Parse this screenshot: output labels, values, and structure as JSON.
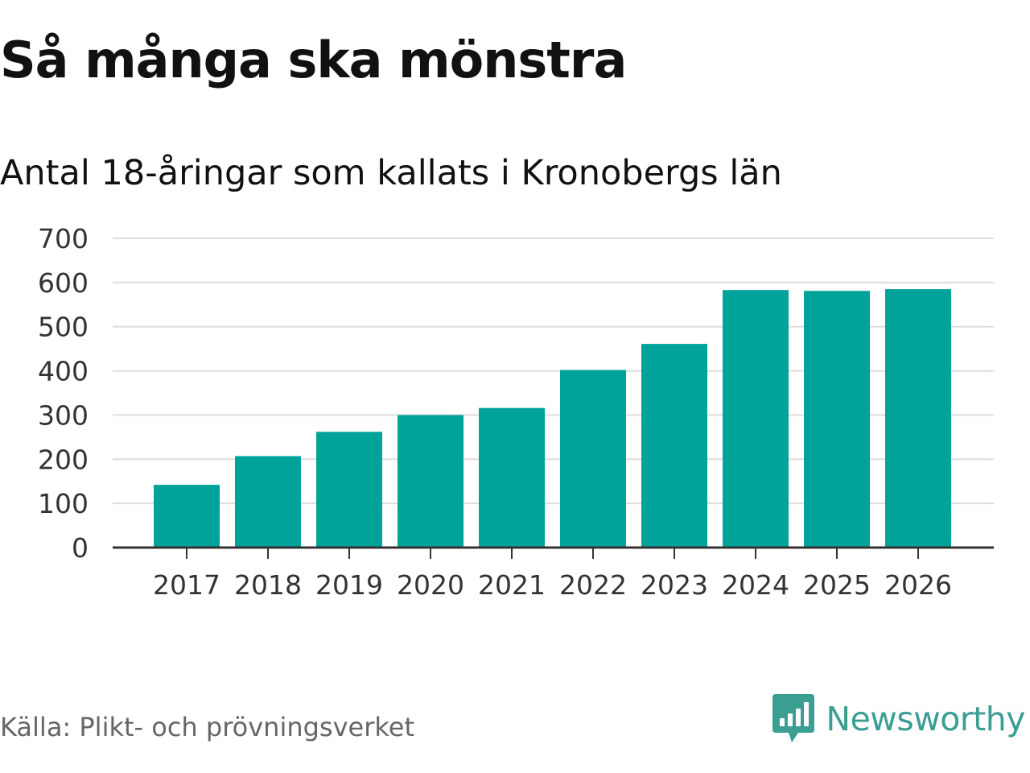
{
  "title": "Så många ska mönstra",
  "subtitle": "Antal 18-åringar som kallats i Kronobergs län",
  "source": "Källa: Plikt- och prövningsverket",
  "brand": {
    "name": "Newsworthy",
    "color": "#3a9e93",
    "icon": "bar-chart-speech-bubble-icon"
  },
  "colors": {
    "bar": "#00a39a",
    "grid": "#dddddd",
    "axis": "#333333",
    "text": "#111111"
  },
  "chart_data": {
    "type": "bar",
    "title": "Så många ska mönstra",
    "subtitle": "Antal 18-åringar som kallats i Kronobergs län",
    "xlabel": "",
    "ylabel": "",
    "categories": [
      "2017",
      "2018",
      "2019",
      "2020",
      "2021",
      "2022",
      "2023",
      "2024",
      "2025",
      "2026"
    ],
    "values": [
      142,
      207,
      262,
      300,
      316,
      402,
      461,
      583,
      581,
      585
    ],
    "ylim": [
      0,
      700
    ],
    "yticks": [
      0,
      100,
      200,
      300,
      400,
      500,
      600,
      700
    ],
    "grid": true,
    "legend": "none"
  }
}
